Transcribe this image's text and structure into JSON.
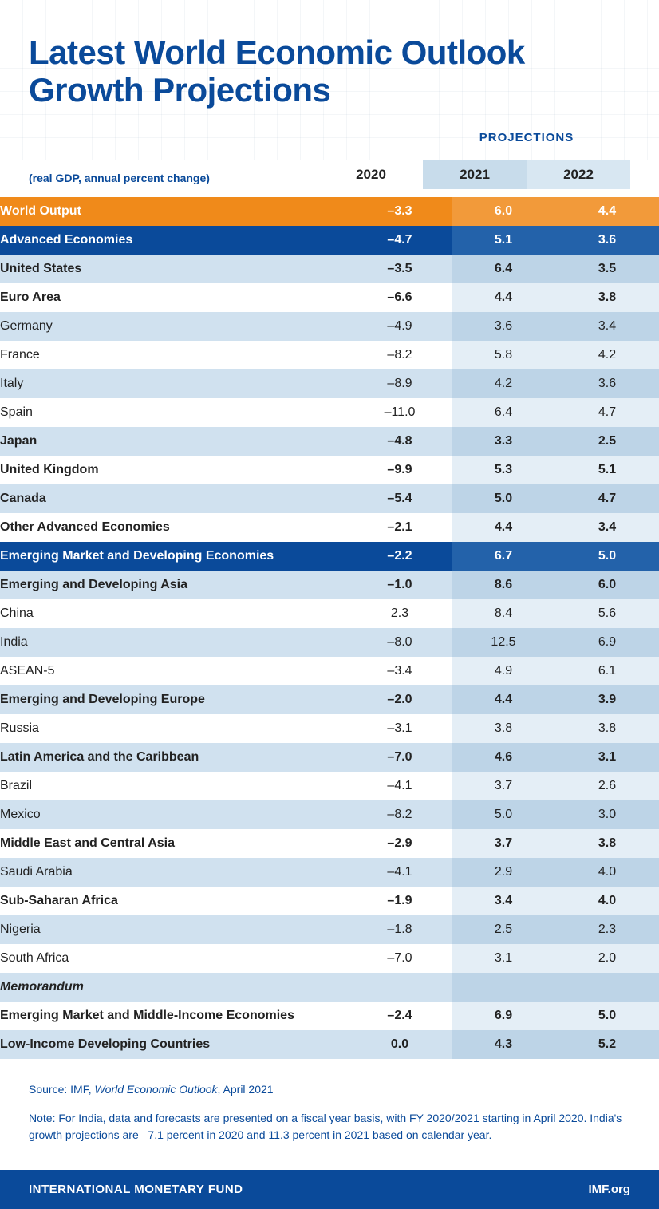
{
  "title": "Latest World Economic Outlook Growth Projections",
  "subtitle": "(real GDP, annual percent change)",
  "projections_label": "PROJECTIONS",
  "years": {
    "y2020": "2020",
    "y2021": "2021",
    "y2022": "2022"
  },
  "colors": {
    "brand_blue": "#0a4a9a",
    "orange": "#f08a1a",
    "row_light": "#d0e1ef",
    "proj_cell_light": "#bdd4e7",
    "proj_cell_white": "#e4eef6",
    "header_proj_bg": "#c8dceb"
  },
  "rows": [
    {
      "label": "World Output",
      "v2020": "–3.3",
      "v2021": "6.0",
      "v2022": "4.4",
      "style": "orange",
      "bold": true,
      "indent": 0
    },
    {
      "label": "Advanced Economies",
      "v2020": "–4.7",
      "v2021": "5.1",
      "v2022": "3.6",
      "style": "darkblue",
      "bold": true,
      "indent": 0
    },
    {
      "label": "United States",
      "v2020": "–3.5",
      "v2021": "6.4",
      "v2022": "3.5",
      "style": "light",
      "bold": true,
      "indent": 0
    },
    {
      "label": "Euro Area",
      "v2020": "–6.6",
      "v2021": "4.4",
      "v2022": "3.8",
      "style": "white",
      "bold": true,
      "indent": 0
    },
    {
      "label": "Germany",
      "v2020": "–4.9",
      "v2021": "3.6",
      "v2022": "3.4",
      "style": "light",
      "bold": false,
      "indent": 1
    },
    {
      "label": "France",
      "v2020": "–8.2",
      "v2021": "5.8",
      "v2022": "4.2",
      "style": "white",
      "bold": false,
      "indent": 1
    },
    {
      "label": "Italy",
      "v2020": "–8.9",
      "v2021": "4.2",
      "v2022": "3.6",
      "style": "light",
      "bold": false,
      "indent": 1
    },
    {
      "label": "Spain",
      "v2020": "–11.0",
      "v2021": "6.4",
      "v2022": "4.7",
      "style": "white",
      "bold": false,
      "indent": 1
    },
    {
      "label": "Japan",
      "v2020": "–4.8",
      "v2021": "3.3",
      "v2022": "2.5",
      "style": "light",
      "bold": true,
      "indent": 0
    },
    {
      "label": "United Kingdom",
      "v2020": "–9.9",
      "v2021": "5.3",
      "v2022": "5.1",
      "style": "white",
      "bold": true,
      "indent": 0
    },
    {
      "label": "Canada",
      "v2020": "–5.4",
      "v2021": "5.0",
      "v2022": "4.7",
      "style": "light",
      "bold": true,
      "indent": 0
    },
    {
      "label": "Other Advanced Economies",
      "v2020": "–2.1",
      "v2021": "4.4",
      "v2022": "3.4",
      "style": "white",
      "bold": true,
      "indent": 0
    },
    {
      "label": "Emerging Market and Developing Economies",
      "v2020": "–2.2",
      "v2021": "6.7",
      "v2022": "5.0",
      "style": "darkblue",
      "bold": true,
      "indent": 0
    },
    {
      "label": "Emerging and Developing Asia",
      "v2020": "–1.0",
      "v2021": "8.6",
      "v2022": "6.0",
      "style": "light",
      "bold": true,
      "indent": 0
    },
    {
      "label": "China",
      "v2020": "2.3",
      "v2021": "8.4",
      "v2022": "5.6",
      "style": "white",
      "bold": false,
      "indent": 1
    },
    {
      "label": "India",
      "v2020": "–8.0",
      "v2021": "12.5",
      "v2022": "6.9",
      "style": "light",
      "bold": false,
      "indent": 1
    },
    {
      "label": "ASEAN-5",
      "v2020": "–3.4",
      "v2021": "4.9",
      "v2022": "6.1",
      "style": "white",
      "bold": false,
      "indent": 1
    },
    {
      "label": "Emerging and Developing Europe",
      "v2020": "–2.0",
      "v2021": "4.4",
      "v2022": "3.9",
      "style": "light",
      "bold": true,
      "indent": 0
    },
    {
      "label": "Russia",
      "v2020": "–3.1",
      "v2021": "3.8",
      "v2022": "3.8",
      "style": "white",
      "bold": false,
      "indent": 1
    },
    {
      "label": "Latin America and the Caribbean",
      "v2020": "–7.0",
      "v2021": "4.6",
      "v2022": "3.1",
      "style": "light",
      "bold": true,
      "indent": 0
    },
    {
      "label": "Brazil",
      "v2020": "–4.1",
      "v2021": "3.7",
      "v2022": "2.6",
      "style": "white",
      "bold": false,
      "indent": 1
    },
    {
      "label": "Mexico",
      "v2020": "–8.2",
      "v2021": "5.0",
      "v2022": "3.0",
      "style": "light",
      "bold": false,
      "indent": 1
    },
    {
      "label": "Middle East and Central Asia",
      "v2020": "–2.9",
      "v2021": "3.7",
      "v2022": "3.8",
      "style": "white",
      "bold": true,
      "indent": 0
    },
    {
      "label": "Saudi Arabia",
      "v2020": "–4.1",
      "v2021": "2.9",
      "v2022": "4.0",
      "style": "light",
      "bold": false,
      "indent": 1
    },
    {
      "label": "Sub-Saharan Africa",
      "v2020": "–1.9",
      "v2021": "3.4",
      "v2022": "4.0",
      "style": "white",
      "bold": true,
      "indent": 0
    },
    {
      "label": "Nigeria",
      "v2020": "–1.8",
      "v2021": "2.5",
      "v2022": "2.3",
      "style": "light",
      "bold": false,
      "indent": 1
    },
    {
      "label": "South Africa",
      "v2020": "–7.0",
      "v2021": "3.1",
      "v2022": "2.0",
      "style": "white",
      "bold": false,
      "indent": 1
    },
    {
      "label": "Memorandum",
      "v2020": "",
      "v2021": "",
      "v2022": "",
      "style": "light",
      "bold": true,
      "indent": 0,
      "italic": true
    },
    {
      "label": "Emerging Market and Middle-Income Economies",
      "v2020": "–2.4",
      "v2021": "6.9",
      "v2022": "5.0",
      "style": "white",
      "bold": true,
      "indent": 0
    },
    {
      "label": "Low-Income Developing Countries",
      "v2020": "0.0",
      "v2021": "4.3",
      "v2022": "5.2",
      "style": "light",
      "bold": true,
      "indent": 0
    }
  ],
  "source_prefix": "Source: IMF, ",
  "source_title": "World Economic Outlook",
  "source_suffix": ", April 2021",
  "note": "Note: For India, data and forecasts are presented on a fiscal year basis, with FY 2020/2021 starting in April 2020. India's growth projections are –7.1 percent in 2020 and 11.3 percent in 2021 based on calendar year.",
  "footer_org": "INTERNATIONAL MONETARY FUND",
  "footer_site": "IMF.org"
}
